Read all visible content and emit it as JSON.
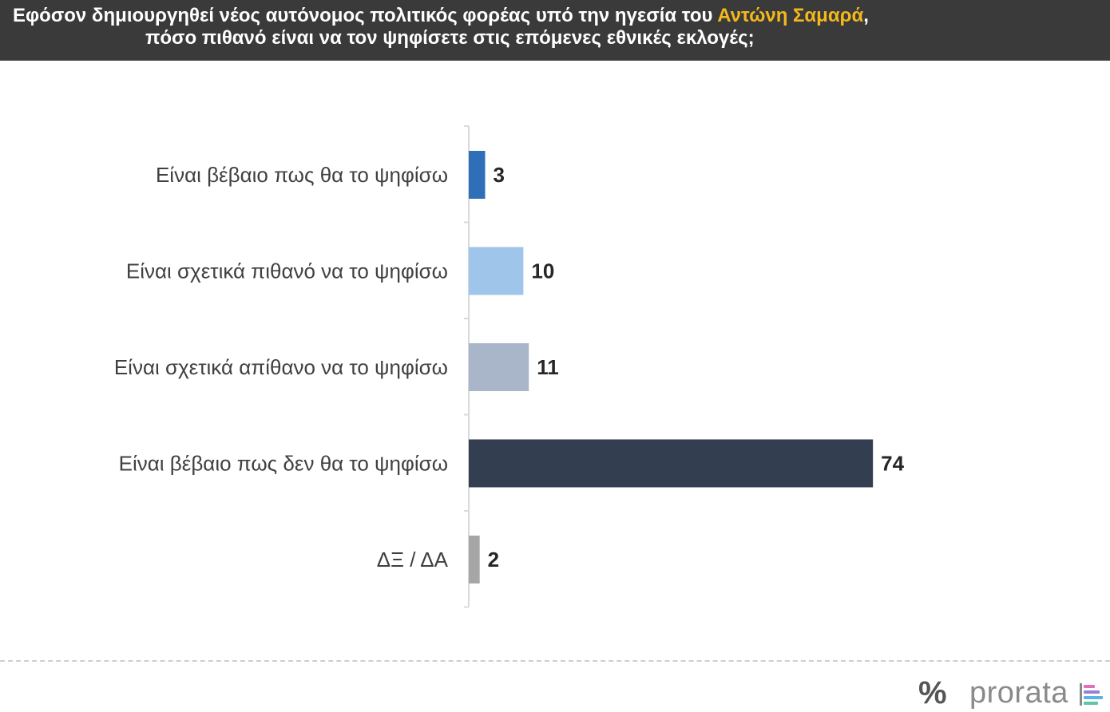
{
  "header": {
    "line1_before": "Εφόσον δημιουργηθεί νέος αυτόνομος πολιτικός φορέας υπό την ηγεσία του ",
    "line1_highlight": "Αντώνη Σαμαρά",
    "line1_after": ",",
    "line2": "πόσο πιθανό είναι να τον ψηφίσετε στις επόμενες εθνικές εκλογές;"
  },
  "chart_data": {
    "type": "bar",
    "orientation": "horizontal",
    "title": "Εφόσον δημιουργηθεί νέος αυτόνομος πολιτικός φορέας υπό την ηγεσία του Αντώνη Σαμαρά, πόσο πιθανό είναι να τον ψηφίσετε στις επόμενες εθνικές εκλογές;",
    "categories": [
      "Είναι βέβαιο πως θα το ψηφίσω",
      "Είναι σχετικά πιθανό να το ψηφίσω",
      "Είναι σχετικά απίθανο να το ψηφίσω",
      "Είναι βέβαιο πως δεν θα το ψηφίσω",
      "ΔΞ / ΔΑ"
    ],
    "values": [
      3,
      10,
      11,
      74,
      2
    ],
    "value_labels": [
      "3",
      "10",
      "11",
      "74",
      "2"
    ],
    "bar_colors": [
      "#2e6fb7",
      "#9fc5ea",
      "#a9b6c9",
      "#333e51",
      "#a6a6a6"
    ],
    "xlim": [
      0,
      100
    ],
    "grid": false,
    "legend": "none"
  },
  "footer": {
    "logo_symbol": "%",
    "logo_text": "prorata",
    "logo_bar_colors": [
      "#e36fb8",
      "#9a7fd8",
      "#5bb4e4",
      "#5fc6a4"
    ]
  },
  "colors": {
    "header_bg": "#3a3a3a",
    "highlight": "#f2b81c"
  }
}
